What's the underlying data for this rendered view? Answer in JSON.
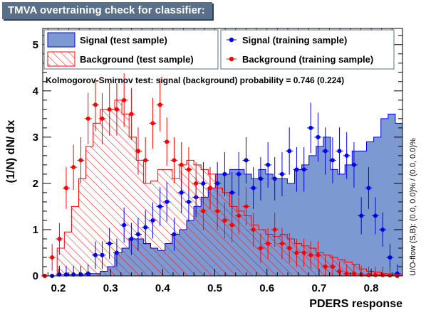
{
  "title": "TMVA overtraining check for classifier: PDERS",
  "colors": {
    "signal_fill": "#7d99d1",
    "signal_line": "#0000ee",
    "background_line": "#ff0000",
    "title_bg": "#5a6f89"
  },
  "chart_data": {
    "type": "histogram",
    "title": "TMVA overtraining check for classifier: PDERS",
    "xlabel": "PDERS response",
    "ylabel": "(1/N) dN/ dx",
    "right_label": "U/O-flow (S,B): (0.0, 0.0)% / (0.0, 0.0)%",
    "xlim": [
      0.17,
      0.86
    ],
    "ylim": [
      0,
      5.35
    ],
    "xticks": [
      "0.2",
      "0.3",
      "0.4",
      "0.5",
      "0.6",
      "0.7",
      "0.8"
    ],
    "xtick_values": [
      0.2,
      0.3,
      0.4,
      0.5,
      0.6,
      0.7,
      0.8
    ],
    "yticks": [
      "0",
      "1",
      "2",
      "3",
      "4",
      "5"
    ],
    "ytick_values": [
      0,
      1,
      2,
      3,
      4,
      5
    ],
    "bin_width": 0.0138,
    "bins_start": 0.17,
    "ks_text": "Kolmogorov-Smirnov test: signal (background) probability = 0.746 (0.224)",
    "legend": {
      "signal_test": "Signal (test sample)",
      "background_test": "Background (test sample)",
      "signal_train": "Signal (training sample)",
      "background_train": "Background (training sample)"
    },
    "series": [
      {
        "name": "Signal (test sample)",
        "values": [
          0,
          0,
          0,
          0.03,
          0.03,
          0.03,
          0.05,
          0.05,
          0.1,
          0.2,
          0.5,
          0.6,
          0.8,
          0.8,
          0.7,
          0.6,
          0.55,
          0.7,
          0.9,
          1.0,
          1.2,
          1.5,
          1.7,
          1.9,
          2.2,
          2.2,
          2.3,
          2.3,
          2.2,
          2.1,
          2.3,
          2.2,
          2.1,
          2.1,
          2.0,
          2.3,
          2.4,
          2.6,
          2.8,
          3.0,
          2.3,
          2.2,
          2.4,
          2.7,
          2.7,
          2.9,
          3.0,
          3.4,
          3.5,
          3.3,
          2.9,
          2.7,
          2.5,
          1.8,
          1.7,
          1.1,
          0.5,
          0.1,
          0.05,
          0,
          0
        ]
      },
      {
        "name": "Background (test sample)",
        "values": [
          0,
          0,
          0.6,
          0.95,
          1.5,
          2.1,
          2.8,
          3.3,
          3.6,
          3.6,
          3.8,
          3.5,
          3.0,
          2.5,
          2.0,
          2.05,
          2.3,
          2.3,
          2.1,
          2.4,
          2.5,
          2.4,
          2.3,
          2.2,
          1.9,
          1.8,
          1.5,
          1.4,
          1.3,
          1.1,
          1.0,
          0.9,
          0.85,
          0.9,
          0.8,
          0.7,
          0.65,
          0.6,
          0.5,
          0.45,
          0.4,
          0.35,
          0.3,
          0.25,
          0.15,
          0.1,
          0.08,
          0.05,
          0.03,
          0.02,
          0.02,
          0,
          0,
          0,
          0,
          0,
          0,
          0,
          0,
          0,
          0
        ]
      },
      {
        "name": "Signal (training sample)",
        "points": [
          [
            0.174,
            0
          ],
          [
            0.188,
            0
          ],
          [
            0.202,
            0.03
          ],
          [
            0.215,
            0.03
          ],
          [
            0.229,
            0.03
          ],
          [
            0.243,
            0.03
          ],
          [
            0.257,
            0.05
          ],
          [
            0.271,
            0.45
          ],
          [
            0.284,
            0.45
          ],
          [
            0.298,
            0.7
          ],
          [
            0.312,
            0.5
          ],
          [
            0.326,
            1.1
          ],
          [
            0.34,
            0.8
          ],
          [
            0.353,
            0.9
          ],
          [
            0.367,
            1.05
          ],
          [
            0.381,
            1.2
          ],
          [
            0.395,
            1.5
          ],
          [
            0.408,
            1.6
          ],
          [
            0.422,
            0.9
          ],
          [
            0.436,
            1.8
          ],
          [
            0.45,
            1.6
          ],
          [
            0.464,
            1.7
          ],
          [
            0.478,
            2.0
          ],
          [
            0.491,
            1.9
          ],
          [
            0.505,
            2.0
          ],
          [
            0.519,
            2.2
          ],
          [
            0.533,
            1.8
          ],
          [
            0.546,
            2.2
          ],
          [
            0.56,
            2.5
          ],
          [
            0.574,
            1.9
          ],
          [
            0.588,
            2.1
          ],
          [
            0.602,
            2.4
          ],
          [
            0.615,
            2.1
          ],
          [
            0.629,
            2.2
          ],
          [
            0.643,
            2.7
          ],
          [
            0.657,
            2.3
          ],
          [
            0.671,
            2.3
          ],
          [
            0.684,
            3.2
          ],
          [
            0.698,
            3.0
          ],
          [
            0.712,
            2.7
          ],
          [
            0.726,
            2.5
          ],
          [
            0.739,
            2.7
          ],
          [
            0.753,
            2.6
          ],
          [
            0.767,
            2.4
          ],
          [
            0.781,
            1.3
          ],
          [
            0.795,
            1.9
          ],
          [
            0.808,
            1.3
          ],
          [
            0.822,
            1.0
          ],
          [
            0.836,
            0.4
          ],
          [
            0.85,
            0.05
          ]
        ]
      },
      {
        "name": "Background (training sample)",
        "points": [
          [
            0.174,
            0
          ],
          [
            0.188,
            0.4
          ],
          [
            0.202,
            0.8
          ],
          [
            0.215,
            1.9
          ],
          [
            0.229,
            2.35
          ],
          [
            0.243,
            2.5
          ],
          [
            0.257,
            3.4
          ],
          [
            0.271,
            3.7
          ],
          [
            0.284,
            3.4
          ],
          [
            0.298,
            3.6
          ],
          [
            0.312,
            3.6
          ],
          [
            0.326,
            3.8
          ],
          [
            0.34,
            3.5
          ],
          [
            0.353,
            2.7
          ],
          [
            0.367,
            2.5
          ],
          [
            0.381,
            3.3
          ],
          [
            0.395,
            3.7
          ],
          [
            0.408,
            2.9
          ],
          [
            0.422,
            2.5
          ],
          [
            0.436,
            2.4
          ],
          [
            0.45,
            2.3
          ],
          [
            0.464,
            2.0
          ],
          [
            0.478,
            1.4
          ],
          [
            0.491,
            1.9
          ],
          [
            0.505,
            1.4
          ],
          [
            0.519,
            1.2
          ],
          [
            0.533,
            1.1
          ],
          [
            0.546,
            1.3
          ],
          [
            0.56,
            1.5
          ],
          [
            0.574,
            1.0
          ],
          [
            0.588,
            0.6
          ],
          [
            0.602,
            0.7
          ],
          [
            0.615,
            1.0
          ],
          [
            0.629,
            0.7
          ],
          [
            0.643,
            0.6
          ],
          [
            0.657,
            0.5
          ],
          [
            0.671,
            0.5
          ],
          [
            0.684,
            0.45
          ],
          [
            0.698,
            0.45
          ],
          [
            0.712,
            0.2
          ],
          [
            0.726,
            0.2
          ],
          [
            0.739,
            0.1
          ],
          [
            0.753,
            0.05
          ],
          [
            0.767,
            0.05
          ],
          [
            0.781,
            0.03
          ],
          [
            0.795,
            0.02
          ],
          [
            0.808,
            0.02
          ],
          [
            0.822,
            0.02
          ],
          [
            0.836,
            0.01
          ],
          [
            0.85,
            0
          ]
        ]
      }
    ]
  }
}
